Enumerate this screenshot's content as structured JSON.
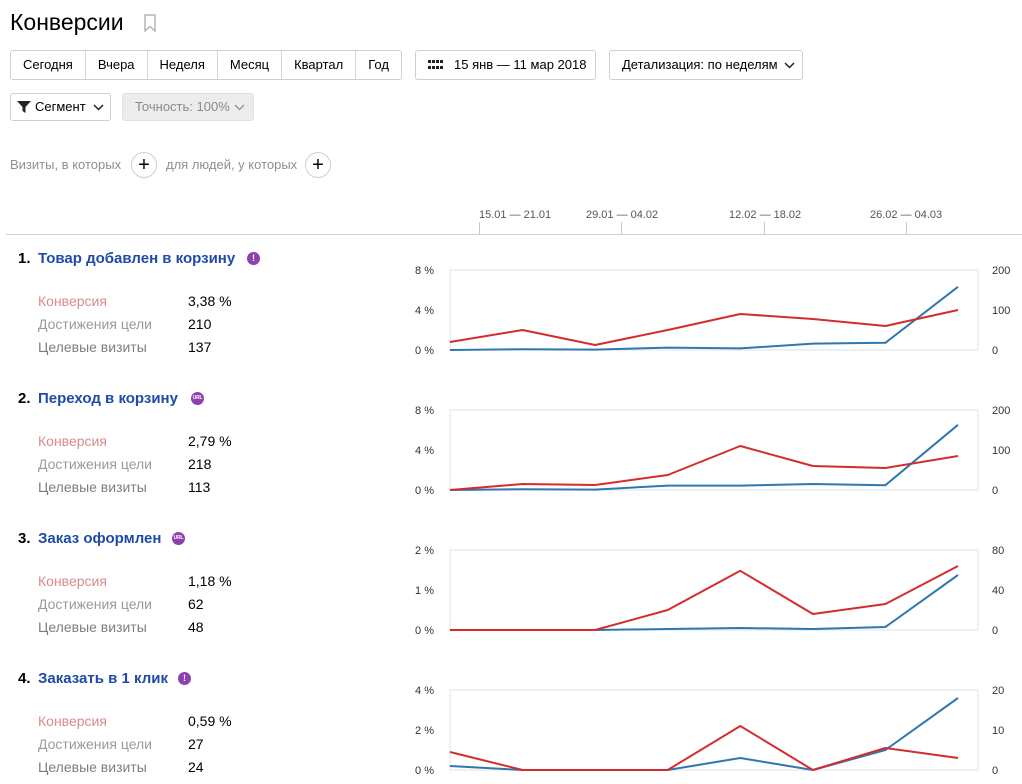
{
  "page": {
    "title": "Конверсии"
  },
  "periods": [
    "Сегодня",
    "Вчера",
    "Неделя",
    "Месяц",
    "Квартал",
    "Год"
  ],
  "date_range": "15 янв — 11 мар 2018",
  "detail": "Детализация: по неделям",
  "segment_label": "Сегмент",
  "accuracy_label": "Точность: 100%",
  "filter": {
    "visits_label": "Визиты, в которых",
    "people_label": "для людей, у которых"
  },
  "weeks": [
    "15.01 — 21.01",
    "29.01 — 04.02",
    "12.02 — 18.02",
    "26.02 — 04.03"
  ],
  "metric_labels": {
    "conversion": "Конверсия",
    "achievements": "Достижения цели",
    "visits": "Целевые визиты"
  },
  "colors": {
    "conversion_line": "#d42c2c",
    "visits_line": "#2f77b0",
    "link": "#1f4ba6",
    "badge": "#8e3fb0"
  },
  "goals": [
    {
      "num": "1.",
      "name": "Товар добавлен в корзину",
      "badge": "!",
      "badge_icon": "exclamation-icon",
      "conversion": "3,38 %",
      "achievements": "210",
      "visits": "137",
      "chart_data": {
        "type": "line",
        "left_ticks": [
          "8 %",
          "4 %",
          "0 %"
        ],
        "right_ticks": [
          "200",
          "100",
          "0"
        ],
        "left_max": 8,
        "right_max": 200,
        "series": [
          {
            "role": "conversion",
            "axis": "left",
            "values": [
              0.8,
              2.0,
              0.5,
              2.0,
              3.6,
              3.1,
              2.4,
              4.0
            ]
          },
          {
            "role": "visits",
            "axis": "right",
            "values": [
              0,
              2,
              1,
              6,
              4,
              16,
              18,
              158
            ]
          }
        ]
      }
    },
    {
      "num": "2.",
      "name": "Переход в корзину",
      "badge": "URL",
      "badge_icon": "url-icon",
      "conversion": "2,79 %",
      "achievements": "218",
      "visits": "113",
      "chart_data": {
        "type": "line",
        "left_ticks": [
          "8 %",
          "4 %",
          "0 %"
        ],
        "right_ticks": [
          "200",
          "100",
          "0"
        ],
        "left_max": 8,
        "right_max": 200,
        "series": [
          {
            "role": "conversion",
            "axis": "left",
            "values": [
              0.0,
              0.6,
              0.5,
              1.5,
              4.4,
              2.4,
              2.2,
              3.4
            ]
          },
          {
            "role": "visits",
            "axis": "right",
            "values": [
              0,
              2,
              1,
              11,
              11,
              15,
              12,
              163
            ]
          }
        ]
      }
    },
    {
      "num": "3.",
      "name": "Заказ оформлен",
      "badge": "URL",
      "badge_icon": "url-icon",
      "conversion": "1,18 %",
      "achievements": "62",
      "visits": "48",
      "chart_data": {
        "type": "line",
        "left_ticks": [
          "2 %",
          "1 %",
          "0 %"
        ],
        "right_ticks": [
          "80",
          "40",
          "0"
        ],
        "left_max": 2,
        "right_max": 80,
        "series": [
          {
            "role": "conversion",
            "axis": "left",
            "values": [
              0,
              0,
              0,
              0.5,
              1.48,
              0.4,
              0.65,
              1.6
            ]
          },
          {
            "role": "visits",
            "axis": "right",
            "values": [
              0,
              0,
              0,
              1,
              2,
              1,
              3,
              55
            ]
          }
        ]
      }
    },
    {
      "num": "4.",
      "name": "Заказать в 1 клик",
      "badge": "!",
      "badge_icon": "exclamation-icon",
      "conversion": "0,59 %",
      "achievements": "27",
      "visits": "24",
      "chart_data": {
        "type": "line",
        "left_ticks": [
          "4 %",
          "2 %",
          "0 %"
        ],
        "right_ticks": [
          "20",
          "10",
          "0"
        ],
        "left_max": 4,
        "right_max": 20,
        "series": [
          {
            "role": "conversion",
            "axis": "left",
            "values": [
              0.9,
              0,
              0,
              0,
              2.2,
              0,
              1.1,
              0.6
            ]
          },
          {
            "role": "visits",
            "axis": "right",
            "values": [
              1,
              0,
              0,
              0,
              3,
              0,
              5,
              18
            ]
          }
        ]
      }
    }
  ]
}
